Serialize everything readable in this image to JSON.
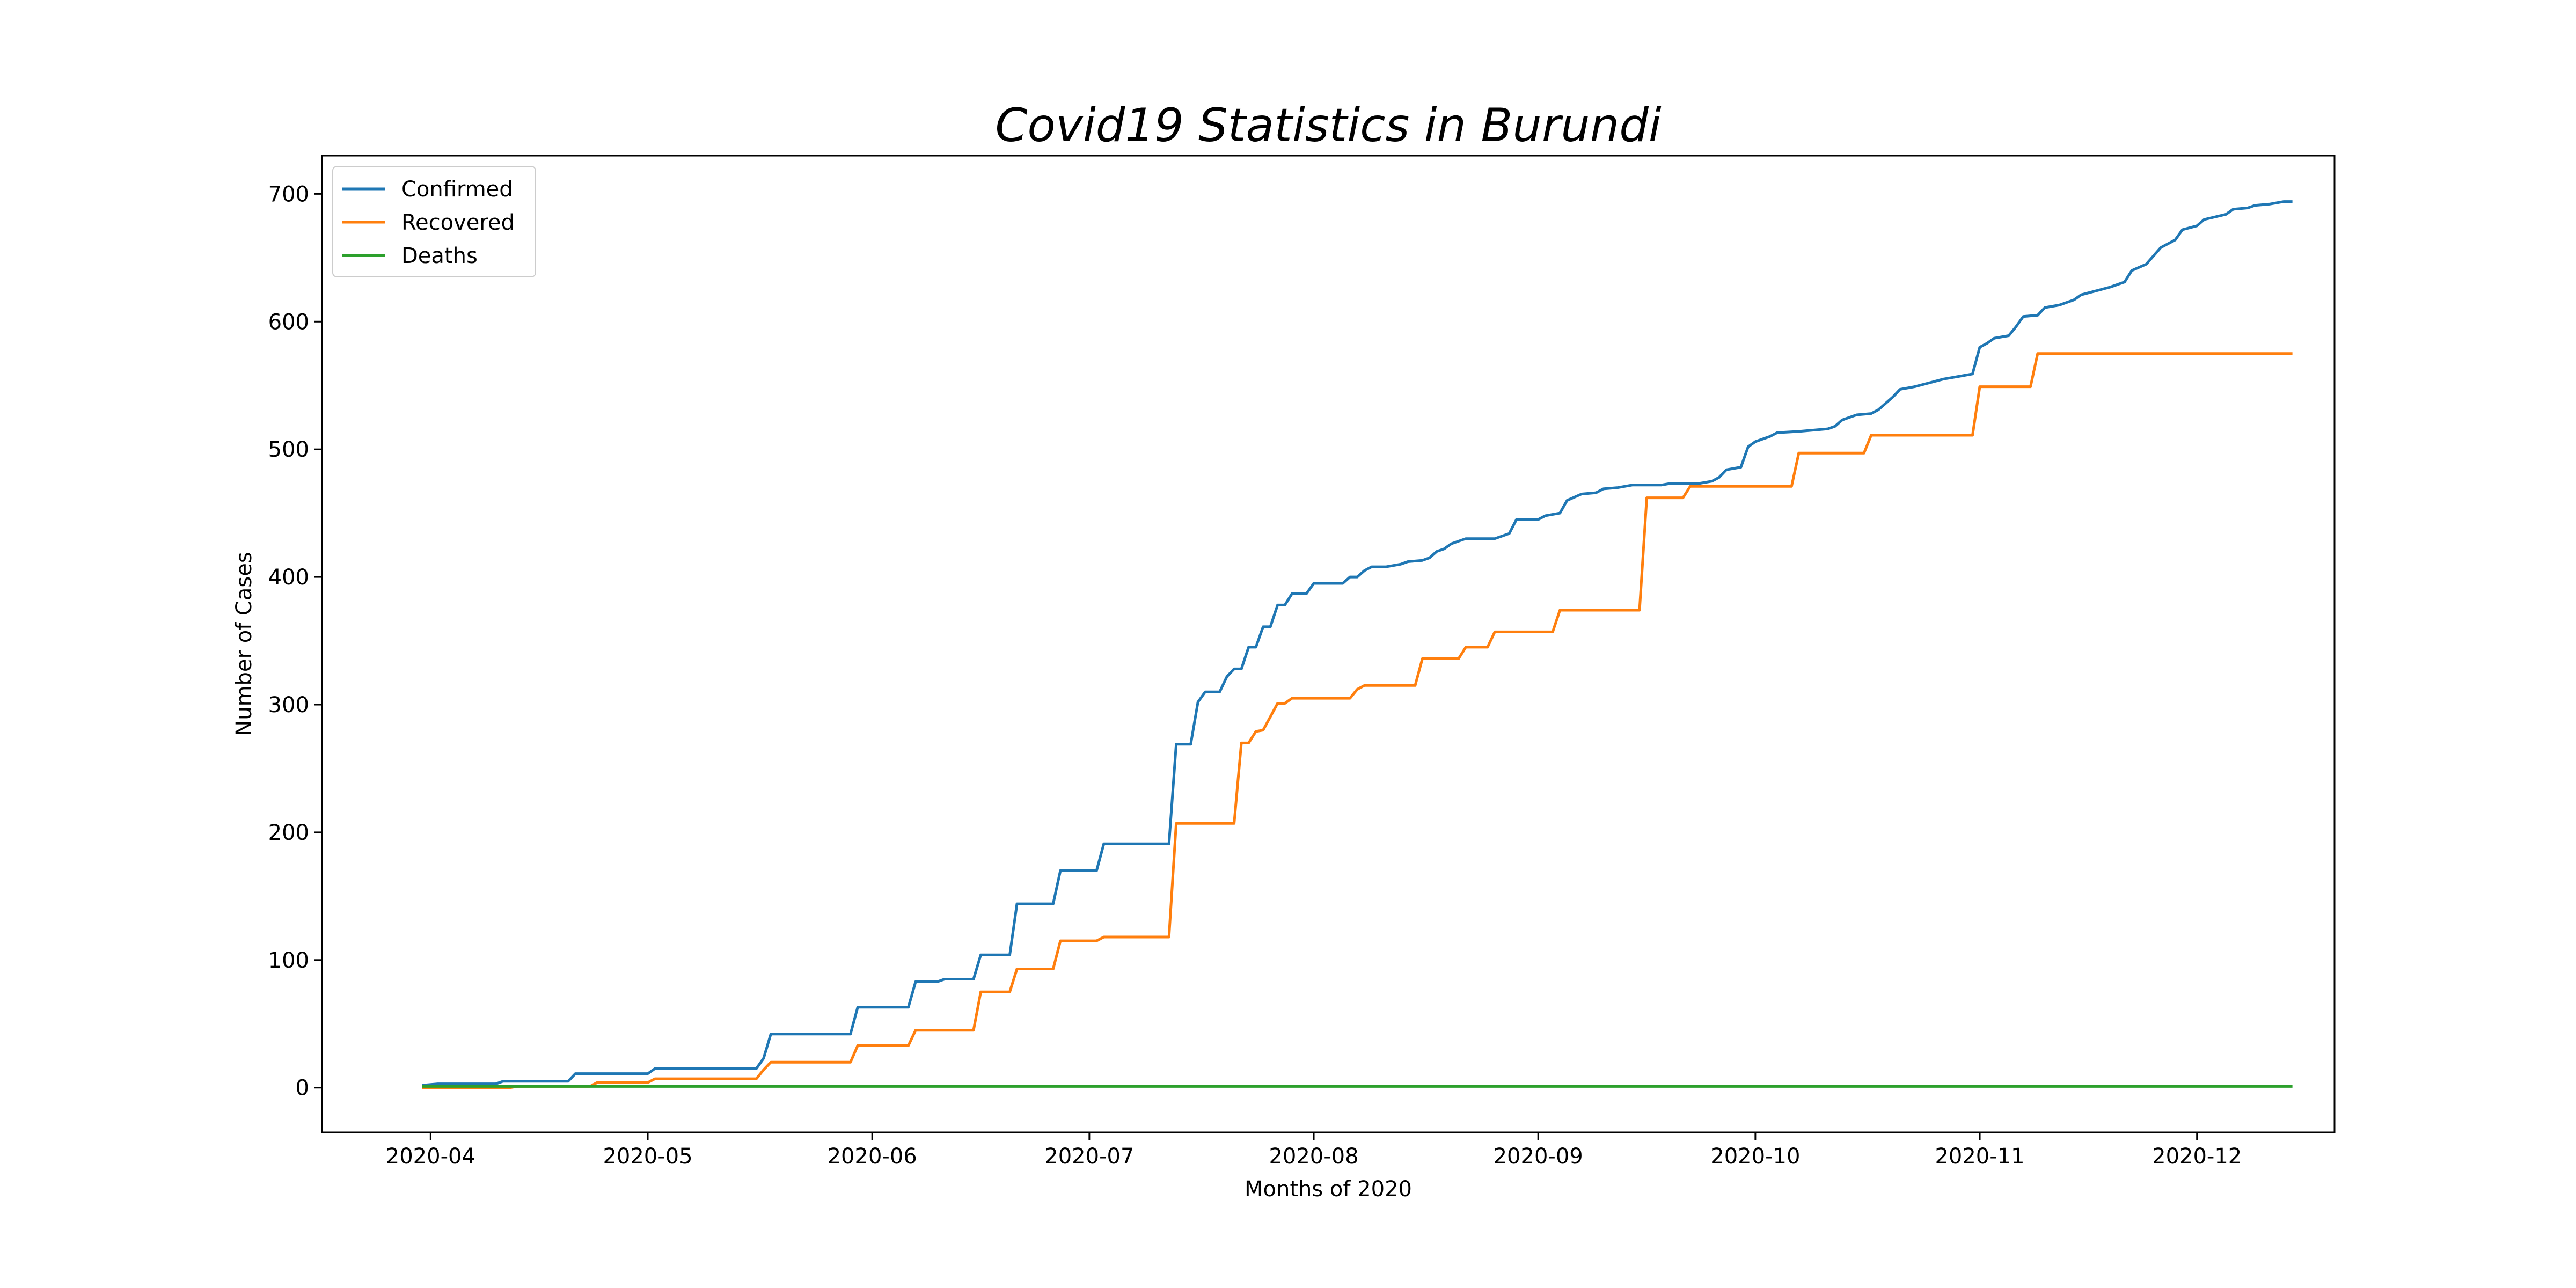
{
  "chart_data": {
    "type": "line",
    "title": "Covid19 Statistics in Burundi",
    "xlabel": "Months of 2020",
    "ylabel": "Number of Cases",
    "xlim": [
      "2020-03-17",
      "2020-12-20"
    ],
    "ylim": [
      -35,
      730
    ],
    "x_ticks": [
      "2020-04-01",
      "2020-05-01",
      "2020-06-01",
      "2020-07-01",
      "2020-08-01",
      "2020-09-01",
      "2020-10-01",
      "2020-11-01",
      "2020-12-01"
    ],
    "x_tick_labels": [
      "2020-04",
      "2020-05",
      "2020-06",
      "2020-07",
      "2020-08",
      "2020-09",
      "2020-10",
      "2020-11",
      "2020-12"
    ],
    "y_ticks": [
      0,
      100,
      200,
      300,
      400,
      500,
      600,
      700
    ],
    "y_tick_labels": [
      "0",
      "100",
      "200",
      "300",
      "400",
      "500",
      "600",
      "700"
    ],
    "grid": false,
    "legend": "top-left",
    "series": [
      {
        "name": "Confirmed",
        "color": "#1f77b4",
        "points": [
          [
            "2020-03-31",
            2
          ],
          [
            "2020-04-02",
            3
          ],
          [
            "2020-04-10",
            3
          ],
          [
            "2020-04-11",
            5
          ],
          [
            "2020-04-20",
            5
          ],
          [
            "2020-04-21",
            11
          ],
          [
            "2020-05-01",
            11
          ],
          [
            "2020-05-02",
            15
          ],
          [
            "2020-05-16",
            15
          ],
          [
            "2020-05-17",
            23
          ],
          [
            "2020-05-18",
            42
          ],
          [
            "2020-05-29",
            42
          ],
          [
            "2020-05-30",
            63
          ],
          [
            "2020-06-06",
            63
          ],
          [
            "2020-06-07",
            83
          ],
          [
            "2020-06-10",
            83
          ],
          [
            "2020-06-11",
            85
          ],
          [
            "2020-06-15",
            85
          ],
          [
            "2020-06-16",
            104
          ],
          [
            "2020-06-20",
            104
          ],
          [
            "2020-06-21",
            144
          ],
          [
            "2020-06-26",
            144
          ],
          [
            "2020-06-27",
            170
          ],
          [
            "2020-07-02",
            170
          ],
          [
            "2020-07-03",
            191
          ],
          [
            "2020-07-12",
            191
          ],
          [
            "2020-07-13",
            269
          ],
          [
            "2020-07-15",
            269
          ],
          [
            "2020-07-16",
            302
          ],
          [
            "2020-07-17",
            310
          ],
          [
            "2020-07-19",
            310
          ],
          [
            "2020-07-20",
            322
          ],
          [
            "2020-07-21",
            328
          ],
          [
            "2020-07-22",
            328
          ],
          [
            "2020-07-23",
            345
          ],
          [
            "2020-07-24",
            345
          ],
          [
            "2020-07-25",
            361
          ],
          [
            "2020-07-26",
            361
          ],
          [
            "2020-07-27",
            378
          ],
          [
            "2020-07-28",
            378
          ],
          [
            "2020-07-29",
            387
          ],
          [
            "2020-07-31",
            387
          ],
          [
            "2020-08-01",
            395
          ],
          [
            "2020-08-05",
            395
          ],
          [
            "2020-08-06",
            400
          ],
          [
            "2020-08-07",
            400
          ],
          [
            "2020-08-08",
            405
          ],
          [
            "2020-08-09",
            408
          ],
          [
            "2020-08-11",
            408
          ],
          [
            "2020-08-13",
            410
          ],
          [
            "2020-08-14",
            412
          ],
          [
            "2020-08-16",
            413
          ],
          [
            "2020-08-17",
            415
          ],
          [
            "2020-08-18",
            420
          ],
          [
            "2020-08-19",
            422
          ],
          [
            "2020-08-20",
            426
          ],
          [
            "2020-08-22",
            430
          ],
          [
            "2020-08-26",
            430
          ],
          [
            "2020-08-28",
            434
          ],
          [
            "2020-08-29",
            445
          ],
          [
            "2020-09-01",
            445
          ],
          [
            "2020-09-02",
            448
          ],
          [
            "2020-09-04",
            450
          ],
          [
            "2020-09-05",
            460
          ],
          [
            "2020-09-07",
            465
          ],
          [
            "2020-09-09",
            466
          ],
          [
            "2020-09-10",
            469
          ],
          [
            "2020-09-12",
            470
          ],
          [
            "2020-09-14",
            472
          ],
          [
            "2020-09-18",
            472
          ],
          [
            "2020-09-19",
            473
          ],
          [
            "2020-09-23",
            473
          ],
          [
            "2020-09-25",
            475
          ],
          [
            "2020-09-26",
            478
          ],
          [
            "2020-09-27",
            484
          ],
          [
            "2020-09-29",
            486
          ],
          [
            "2020-09-30",
            502
          ],
          [
            "2020-10-01",
            506
          ],
          [
            "2020-10-03",
            510
          ],
          [
            "2020-10-04",
            513
          ],
          [
            "2020-10-07",
            514
          ],
          [
            "2020-10-09",
            515
          ],
          [
            "2020-10-11",
            516
          ],
          [
            "2020-10-12",
            518
          ],
          [
            "2020-10-13",
            523
          ],
          [
            "2020-10-14",
            525
          ],
          [
            "2020-10-15",
            527
          ],
          [
            "2020-10-17",
            528
          ],
          [
            "2020-10-18",
            531
          ],
          [
            "2020-10-19",
            536
          ],
          [
            "2020-10-20",
            541
          ],
          [
            "2020-10-21",
            547
          ],
          [
            "2020-10-23",
            549
          ],
          [
            "2020-10-25",
            552
          ],
          [
            "2020-10-27",
            555
          ],
          [
            "2020-10-29",
            557
          ],
          [
            "2020-10-31",
            559
          ],
          [
            "2020-11-01",
            580
          ],
          [
            "2020-11-02",
            583
          ],
          [
            "2020-11-03",
            587
          ],
          [
            "2020-11-05",
            589
          ],
          [
            "2020-11-06",
            596
          ],
          [
            "2020-11-07",
            604
          ],
          [
            "2020-11-09",
            605
          ],
          [
            "2020-11-10",
            611
          ],
          [
            "2020-11-12",
            613
          ],
          [
            "2020-11-14",
            617
          ],
          [
            "2020-11-15",
            621
          ],
          [
            "2020-11-17",
            624
          ],
          [
            "2020-11-19",
            627
          ],
          [
            "2020-11-21",
            631
          ],
          [
            "2020-11-22",
            640
          ],
          [
            "2020-11-24",
            645
          ],
          [
            "2020-11-26",
            658
          ],
          [
            "2020-11-28",
            664
          ],
          [
            "2020-11-29",
            672
          ],
          [
            "2020-12-01",
            675
          ],
          [
            "2020-12-02",
            680
          ],
          [
            "2020-12-05",
            684
          ],
          [
            "2020-12-06",
            688
          ],
          [
            "2020-12-08",
            689
          ],
          [
            "2020-12-09",
            691
          ],
          [
            "2020-12-11",
            692
          ],
          [
            "2020-12-12",
            693
          ],
          [
            "2020-12-13",
            694
          ],
          [
            "2020-12-14",
            694
          ]
        ]
      },
      {
        "name": "Recovered",
        "color": "#ff7f0e",
        "points": [
          [
            "2020-03-31",
            0
          ],
          [
            "2020-04-12",
            0
          ],
          [
            "2020-04-13",
            1
          ],
          [
            "2020-04-23",
            1
          ],
          [
            "2020-04-24",
            4
          ],
          [
            "2020-05-01",
            4
          ],
          [
            "2020-05-02",
            7
          ],
          [
            "2020-05-16",
            7
          ],
          [
            "2020-05-17",
            14
          ],
          [
            "2020-05-18",
            20
          ],
          [
            "2020-05-29",
            20
          ],
          [
            "2020-05-30",
            33
          ],
          [
            "2020-06-06",
            33
          ],
          [
            "2020-06-07",
            45
          ],
          [
            "2020-06-15",
            45
          ],
          [
            "2020-06-16",
            75
          ],
          [
            "2020-06-20",
            75
          ],
          [
            "2020-06-21",
            93
          ],
          [
            "2020-06-26",
            93
          ],
          [
            "2020-06-27",
            115
          ],
          [
            "2020-07-02",
            115
          ],
          [
            "2020-07-03",
            118
          ],
          [
            "2020-07-12",
            118
          ],
          [
            "2020-07-13",
            207
          ],
          [
            "2020-07-21",
            207
          ],
          [
            "2020-07-22",
            270
          ],
          [
            "2020-07-23",
            270
          ],
          [
            "2020-07-24",
            279
          ],
          [
            "2020-07-25",
            280
          ],
          [
            "2020-07-27",
            301
          ],
          [
            "2020-07-28",
            301
          ],
          [
            "2020-07-29",
            305
          ],
          [
            "2020-08-06",
            305
          ],
          [
            "2020-08-07",
            312
          ],
          [
            "2020-08-08",
            315
          ],
          [
            "2020-08-15",
            315
          ],
          [
            "2020-08-16",
            336
          ],
          [
            "2020-08-21",
            336
          ],
          [
            "2020-08-22",
            345
          ],
          [
            "2020-08-25",
            345
          ],
          [
            "2020-08-26",
            357
          ],
          [
            "2020-09-03",
            357
          ],
          [
            "2020-09-04",
            374
          ],
          [
            "2020-09-15",
            374
          ],
          [
            "2020-09-16",
            462
          ],
          [
            "2020-09-21",
            462
          ],
          [
            "2020-09-22",
            471
          ],
          [
            "2020-10-06",
            471
          ],
          [
            "2020-10-07",
            497
          ],
          [
            "2020-10-16",
            497
          ],
          [
            "2020-10-17",
            511
          ],
          [
            "2020-10-31",
            511
          ],
          [
            "2020-11-01",
            549
          ],
          [
            "2020-11-08",
            549
          ],
          [
            "2020-11-09",
            575
          ],
          [
            "2020-12-14",
            575
          ]
        ]
      },
      {
        "name": "Deaths",
        "color": "#2ca02c",
        "points": [
          [
            "2020-03-31",
            1
          ],
          [
            "2020-12-14",
            1
          ]
        ]
      }
    ]
  }
}
